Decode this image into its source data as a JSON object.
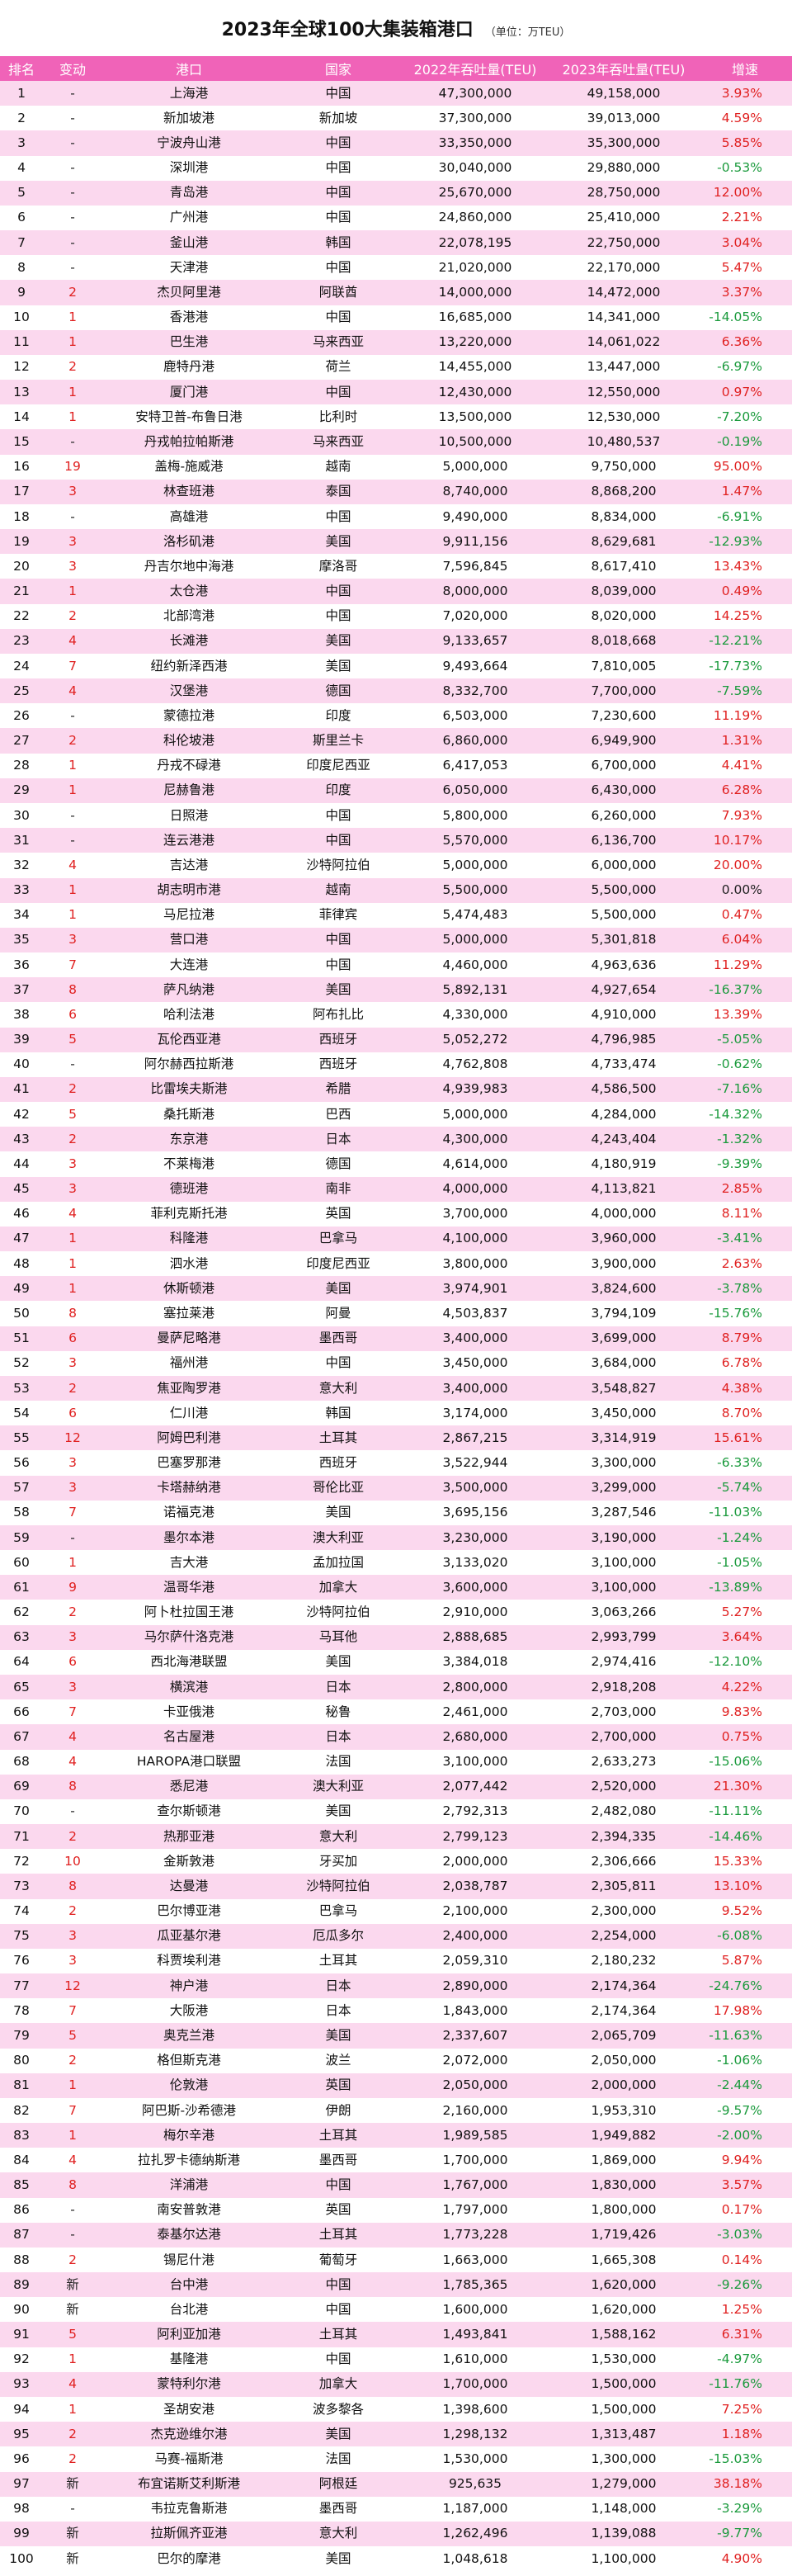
{
  "title": "2023年全球100大集装箱港口",
  "unit": "（单位：万TEU）",
  "colors": {
    "header_bg": "#f063b8",
    "row_stripe": "#fbd8ee",
    "positive": "#e02020",
    "negative": "#1a9a3c"
  },
  "columns": [
    "排名",
    "变动",
    "港口",
    "国家",
    "2022年吞吐量(TEU)",
    "2023年吞吐量(TEU)",
    "增速"
  ],
  "rows": [
    {
      "rank": "1",
      "change": "-",
      "port": "上海港",
      "country": "中国",
      "y2022": "47,300,000",
      "y2023": "49,158,000",
      "growth": "3.93%"
    },
    {
      "rank": "2",
      "change": "-",
      "port": "新加坡港",
      "country": "新加坡",
      "y2022": "37,300,000",
      "y2023": "39,013,000",
      "growth": "4.59%"
    },
    {
      "rank": "3",
      "change": "-",
      "port": "宁波舟山港",
      "country": "中国",
      "y2022": "33,350,000",
      "y2023": "35,300,000",
      "growth": "5.85%"
    },
    {
      "rank": "4",
      "change": "-",
      "port": "深圳港",
      "country": "中国",
      "y2022": "30,040,000",
      "y2023": "29,880,000",
      "growth": "-0.53%"
    },
    {
      "rank": "5",
      "change": "-",
      "port": "青岛港",
      "country": "中国",
      "y2022": "25,670,000",
      "y2023": "28,750,000",
      "growth": "12.00%"
    },
    {
      "rank": "6",
      "change": "-",
      "port": "广州港",
      "country": "中国",
      "y2022": "24,860,000",
      "y2023": "25,410,000",
      "growth": "2.21%"
    },
    {
      "rank": "7",
      "change": "-",
      "port": "釜山港",
      "country": "韩国",
      "y2022": "22,078,195",
      "y2023": "22,750,000",
      "growth": "3.04%"
    },
    {
      "rank": "8",
      "change": "-",
      "port": "天津港",
      "country": "中国",
      "y2022": "21,020,000",
      "y2023": "22,170,000",
      "growth": "5.47%"
    },
    {
      "rank": "9",
      "change": "2",
      "port": "杰贝阿里港",
      "country": "阿联酋",
      "y2022": "14,000,000",
      "y2023": "14,472,000",
      "growth": "3.37%"
    },
    {
      "rank": "10",
      "change": "1",
      "port": "香港港",
      "country": "中国",
      "y2022": "16,685,000",
      "y2023": "14,341,000",
      "growth": "-14.05%"
    },
    {
      "rank": "11",
      "change": "1",
      "port": "巴生港",
      "country": "马来西亚",
      "y2022": "13,220,000",
      "y2023": "14,061,022",
      "growth": "6.36%"
    },
    {
      "rank": "12",
      "change": "2",
      "port": "鹿特丹港",
      "country": "荷兰",
      "y2022": "14,455,000",
      "y2023": "13,447,000",
      "growth": "-6.97%"
    },
    {
      "rank": "13",
      "change": "1",
      "port": "厦门港",
      "country": "中国",
      "y2022": "12,430,000",
      "y2023": "12,550,000",
      "growth": "0.97%"
    },
    {
      "rank": "14",
      "change": "1",
      "port": "安特卫普-布鲁日港",
      "country": "比利时",
      "y2022": "13,500,000",
      "y2023": "12,530,000",
      "growth": "-7.20%"
    },
    {
      "rank": "15",
      "change": "-",
      "port": "丹戎帕拉帕斯港",
      "country": "马来西亚",
      "y2022": "10,500,000",
      "y2023": "10,480,537",
      "growth": "-0.19%"
    },
    {
      "rank": "16",
      "change": "19",
      "port": "盖梅-施威港",
      "country": "越南",
      "y2022": "5,000,000",
      "y2023": "9,750,000",
      "growth": "95.00%"
    },
    {
      "rank": "17",
      "change": "3",
      "port": "林查班港",
      "country": "泰国",
      "y2022": "8,740,000",
      "y2023": "8,868,200",
      "growth": "1.47%"
    },
    {
      "rank": "18",
      "change": "-",
      "port": "高雄港",
      "country": "中国",
      "y2022": "9,490,000",
      "y2023": "8,834,000",
      "growth": "-6.91%"
    },
    {
      "rank": "19",
      "change": "3",
      "port": "洛杉矶港",
      "country": "美国",
      "y2022": "9,911,156",
      "y2023": "8,629,681",
      "growth": "-12.93%"
    },
    {
      "rank": "20",
      "change": "3",
      "port": "丹吉尔地中海港",
      "country": "摩洛哥",
      "y2022": "7,596,845",
      "y2023": "8,617,410",
      "growth": "13.43%"
    },
    {
      "rank": "21",
      "change": "1",
      "port": "太仓港",
      "country": "中国",
      "y2022": "8,000,000",
      "y2023": "8,039,000",
      "growth": "0.49%"
    },
    {
      "rank": "22",
      "change": "2",
      "port": "北部湾港",
      "country": "中国",
      "y2022": "7,020,000",
      "y2023": "8,020,000",
      "growth": "14.25%"
    },
    {
      "rank": "23",
      "change": "4",
      "port": "长滩港",
      "country": "美国",
      "y2022": "9,133,657",
      "y2023": "8,018,668",
      "growth": "-12.21%"
    },
    {
      "rank": "24",
      "change": "7",
      "port": "纽约新泽西港",
      "country": "美国",
      "y2022": "9,493,664",
      "y2023": "7,810,005",
      "growth": "-17.73%"
    },
    {
      "rank": "25",
      "change": "4",
      "port": "汉堡港",
      "country": "德国",
      "y2022": "8,332,700",
      "y2023": "7,700,000",
      "growth": "-7.59%"
    },
    {
      "rank": "26",
      "change": "-",
      "port": "蒙德拉港",
      "country": "印度",
      "y2022": "6,503,000",
      "y2023": "7,230,600",
      "growth": "11.19%"
    },
    {
      "rank": "27",
      "change": "2",
      "port": "科伦坡港",
      "country": "斯里兰卡",
      "y2022": "6,860,000",
      "y2023": "6,949,900",
      "growth": "1.31%"
    },
    {
      "rank": "28",
      "change": "1",
      "port": "丹戎不碌港",
      "country": "印度尼西亚",
      "y2022": "6,417,053",
      "y2023": "6,700,000",
      "growth": "4.41%"
    },
    {
      "rank": "29",
      "change": "1",
      "port": "尼赫鲁港",
      "country": "印度",
      "y2022": "6,050,000",
      "y2023": "6,430,000",
      "growth": "6.28%"
    },
    {
      "rank": "30",
      "change": "-",
      "port": "日照港",
      "country": "中国",
      "y2022": "5,800,000",
      "y2023": "6,260,000",
      "growth": "7.93%"
    },
    {
      "rank": "31",
      "change": "-",
      "port": "连云港港",
      "country": "中国",
      "y2022": "5,570,000",
      "y2023": "6,136,700",
      "growth": "10.17%"
    },
    {
      "rank": "32",
      "change": "4",
      "port": "吉达港",
      "country": "沙特阿拉伯",
      "y2022": "5,000,000",
      "y2023": "6,000,000",
      "growth": "20.00%"
    },
    {
      "rank": "33",
      "change": "1",
      "port": "胡志明市港",
      "country": "越南",
      "y2022": "5,500,000",
      "y2023": "5,500,000",
      "growth": "0.00%"
    },
    {
      "rank": "34",
      "change": "1",
      "port": "马尼拉港",
      "country": "菲律宾",
      "y2022": "5,474,483",
      "y2023": "5,500,000",
      "growth": "0.47%"
    },
    {
      "rank": "35",
      "change": "3",
      "port": "营口港",
      "country": "中国",
      "y2022": "5,000,000",
      "y2023": "5,301,818",
      "growth": "6.04%"
    },
    {
      "rank": "36",
      "change": "7",
      "port": "大连港",
      "country": "中国",
      "y2022": "4,460,000",
      "y2023": "4,963,636",
      "growth": "11.29%"
    },
    {
      "rank": "37",
      "change": "8",
      "port": "萨凡纳港",
      "country": "美国",
      "y2022": "5,892,131",
      "y2023": "4,927,654",
      "growth": "-16.37%"
    },
    {
      "rank": "38",
      "change": "6",
      "port": "哈利法港",
      "country": "阿布扎比",
      "y2022": "4,330,000",
      "y2023": "4,910,000",
      "growth": "13.39%"
    },
    {
      "rank": "39",
      "change": "5",
      "port": "瓦伦西亚港",
      "country": "西班牙",
      "y2022": "5,052,272",
      "y2023": "4,796,985",
      "growth": "-5.05%"
    },
    {
      "rank": "40",
      "change": "-",
      "port": "阿尔赫西拉斯港",
      "country": "西班牙",
      "y2022": "4,762,808",
      "y2023": "4,733,474",
      "growth": "-0.62%"
    },
    {
      "rank": "41",
      "change": "2",
      "port": "比雷埃夫斯港",
      "country": "希腊",
      "y2022": "4,939,983",
      "y2023": "4,586,500",
      "growth": "-7.16%"
    },
    {
      "rank": "42",
      "change": "5",
      "port": "桑托斯港",
      "country": "巴西",
      "y2022": "5,000,000",
      "y2023": "4,284,000",
      "growth": "-14.32%"
    },
    {
      "rank": "43",
      "change": "2",
      "port": "东京港",
      "country": "日本",
      "y2022": "4,300,000",
      "y2023": "4,243,404",
      "growth": "-1.32%"
    },
    {
      "rank": "44",
      "change": "3",
      "port": "不莱梅港",
      "country": "德国",
      "y2022": "4,614,000",
      "y2023": "4,180,919",
      "growth": "-9.39%"
    },
    {
      "rank": "45",
      "change": "3",
      "port": "德班港",
      "country": "南非",
      "y2022": "4,000,000",
      "y2023": "4,113,821",
      "growth": "2.85%"
    },
    {
      "rank": "46",
      "change": "4",
      "port": "菲利克斯托港",
      "country": "英国",
      "y2022": "3,700,000",
      "y2023": "4,000,000",
      "growth": "8.11%"
    },
    {
      "rank": "47",
      "change": "1",
      "port": "科隆港",
      "country": "巴拿马",
      "y2022": "4,100,000",
      "y2023": "3,960,000",
      "growth": "-3.41%"
    },
    {
      "rank": "48",
      "change": "1",
      "port": "泗水港",
      "country": "印度尼西亚",
      "y2022": "3,800,000",
      "y2023": "3,900,000",
      "growth": "2.63%"
    },
    {
      "rank": "49",
      "change": "1",
      "port": "休斯顿港",
      "country": "美国",
      "y2022": "3,974,901",
      "y2023": "3,824,600",
      "growth": "-3.78%"
    },
    {
      "rank": "50",
      "change": "8",
      "port": "塞拉莱港",
      "country": "阿曼",
      "y2022": "4,503,837",
      "y2023": "3,794,109",
      "growth": "-15.76%"
    },
    {
      "rank": "51",
      "change": "6",
      "port": "曼萨尼略港",
      "country": "墨西哥",
      "y2022": "3,400,000",
      "y2023": "3,699,000",
      "growth": "8.79%"
    },
    {
      "rank": "52",
      "change": "3",
      "port": "福州港",
      "country": "中国",
      "y2022": "3,450,000",
      "y2023": "3,684,000",
      "growth": "6.78%"
    },
    {
      "rank": "53",
      "change": "2",
      "port": "焦亚陶罗港",
      "country": "意大利",
      "y2022": "3,400,000",
      "y2023": "3,548,827",
      "growth": "4.38%"
    },
    {
      "rank": "54",
      "change": "6",
      "port": "仁川港",
      "country": "韩国",
      "y2022": "3,174,000",
      "y2023": "3,450,000",
      "growth": "8.70%"
    },
    {
      "rank": "55",
      "change": "12",
      "port": "阿姆巴利港",
      "country": "土耳其",
      "y2022": "2,867,215",
      "y2023": "3,314,919",
      "growth": "15.61%"
    },
    {
      "rank": "56",
      "change": "3",
      "port": "巴塞罗那港",
      "country": "西班牙",
      "y2022": "3,522,944",
      "y2023": "3,300,000",
      "growth": "-6.33%"
    },
    {
      "rank": "57",
      "change": "3",
      "port": "卡塔赫纳港",
      "country": "哥伦比亚",
      "y2022": "3,500,000",
      "y2023": "3,299,000",
      "growth": "-5.74%"
    },
    {
      "rank": "58",
      "change": "7",
      "port": "诺福克港",
      "country": "美国",
      "y2022": "3,695,156",
      "y2023": "3,287,546",
      "growth": "-11.03%"
    },
    {
      "rank": "59",
      "change": "-",
      "port": "墨尔本港",
      "country": "澳大利亚",
      "y2022": "3,230,000",
      "y2023": "3,190,000",
      "growth": "-1.24%"
    },
    {
      "rank": "60",
      "change": "1",
      "port": "吉大港",
      "country": "孟加拉国",
      "y2022": "3,133,020",
      "y2023": "3,100,000",
      "growth": "-1.05%"
    },
    {
      "rank": "61",
      "change": "9",
      "port": "温哥华港",
      "country": "加拿大",
      "y2022": "3,600,000",
      "y2023": "3,100,000",
      "growth": "-13.89%"
    },
    {
      "rank": "62",
      "change": "2",
      "port": "阿卜杜拉国王港",
      "country": "沙特阿拉伯",
      "y2022": "2,910,000",
      "y2023": "3,063,266",
      "growth": "5.27%"
    },
    {
      "rank": "63",
      "change": "3",
      "port": "马尔萨什洛克港",
      "country": "马耳他",
      "y2022": "2,888,685",
      "y2023": "2,993,799",
      "growth": "3.64%"
    },
    {
      "rank": "64",
      "change": "6",
      "port": "西北海港联盟",
      "country": "美国",
      "y2022": "3,384,018",
      "y2023": "2,974,416",
      "growth": "-12.10%"
    },
    {
      "rank": "65",
      "change": "3",
      "port": "横滨港",
      "country": "日本",
      "y2022": "2,800,000",
      "y2023": "2,918,208",
      "growth": "4.22%"
    },
    {
      "rank": "66",
      "change": "7",
      "port": "卡亚俄港",
      "country": "秘鲁",
      "y2022": "2,461,000",
      "y2023": "2,703,000",
      "growth": "9.83%"
    },
    {
      "rank": "67",
      "change": "4",
      "port": "名古屋港",
      "country": "日本",
      "y2022": "2,680,000",
      "y2023": "2,700,000",
      "growth": "0.75%"
    },
    {
      "rank": "68",
      "change": "4",
      "port": "HAROPA港口联盟",
      "country": "法国",
      "y2022": "3,100,000",
      "y2023": "2,633,273",
      "growth": "-15.06%"
    },
    {
      "rank": "69",
      "change": "8",
      "port": "悉尼港",
      "country": "澳大利亚",
      "y2022": "2,077,442",
      "y2023": "2,520,000",
      "growth": "21.30%"
    },
    {
      "rank": "70",
      "change": "-",
      "port": "查尔斯顿港",
      "country": "美国",
      "y2022": "2,792,313",
      "y2023": "2,482,080",
      "growth": "-11.11%"
    },
    {
      "rank": "71",
      "change": "2",
      "port": "热那亚港",
      "country": "意大利",
      "y2022": "2,799,123",
      "y2023": "2,394,335",
      "growth": "-14.46%"
    },
    {
      "rank": "72",
      "change": "10",
      "port": "金斯敦港",
      "country": "牙买加",
      "y2022": "2,000,000",
      "y2023": "2,306,666",
      "growth": "15.33%"
    },
    {
      "rank": "73",
      "change": "8",
      "port": "达曼港",
      "country": "沙特阿拉伯",
      "y2022": "2,038,787",
      "y2023": "2,305,811",
      "growth": "13.10%"
    },
    {
      "rank": "74",
      "change": "2",
      "port": "巴尔博亚港",
      "country": "巴拿马",
      "y2022": "2,100,000",
      "y2023": "2,300,000",
      "growth": "9.52%"
    },
    {
      "rank": "75",
      "change": "3",
      "port": "瓜亚基尔港",
      "country": "厄瓜多尔",
      "y2022": "2,400,000",
      "y2023": "2,254,000",
      "growth": "-6.08%"
    },
    {
      "rank": "76",
      "change": "3",
      "port": "科贾埃利港",
      "country": "土耳其",
      "y2022": "2,059,310",
      "y2023": "2,180,232",
      "growth": "5.87%"
    },
    {
      "rank": "77",
      "change": "12",
      "port": "神户港",
      "country": "日本",
      "y2022": "2,890,000",
      "y2023": "2,174,364",
      "growth": "-24.76%"
    },
    {
      "rank": "78",
      "change": "7",
      "port": "大阪港",
      "country": "日本",
      "y2022": "1,843,000",
      "y2023": "2,174,364",
      "growth": "17.98%"
    },
    {
      "rank": "79",
      "change": "5",
      "port": "奥克兰港",
      "country": "美国",
      "y2022": "2,337,607",
      "y2023": "2,065,709",
      "growth": "-11.63%"
    },
    {
      "rank": "80",
      "change": "2",
      "port": "格但斯克港",
      "country": "波兰",
      "y2022": "2,072,000",
      "y2023": "2,050,000",
      "growth": "-1.06%"
    },
    {
      "rank": "81",
      "change": "1",
      "port": "伦敦港",
      "country": "英国",
      "y2022": "2,050,000",
      "y2023": "2,000,000",
      "growth": "-2.44%"
    },
    {
      "rank": "82",
      "change": "7",
      "port": "阿巴斯-沙希德港",
      "country": "伊朗",
      "y2022": "2,160,000",
      "y2023": "1,953,310",
      "growth": "-9.57%"
    },
    {
      "rank": "83",
      "change": "1",
      "port": "梅尔辛港",
      "country": "土耳其",
      "y2022": "1,989,585",
      "y2023": "1,949,882",
      "growth": "-2.00%"
    },
    {
      "rank": "84",
      "change": "4",
      "port": "拉扎罗卡德纳斯港",
      "country": "墨西哥",
      "y2022": "1,700,000",
      "y2023": "1,869,000",
      "growth": "9.94%"
    },
    {
      "rank": "85",
      "change": "8",
      "port": "洋浦港",
      "country": "中国",
      "y2022": "1,767,000",
      "y2023": "1,830,000",
      "growth": "3.57%"
    },
    {
      "rank": "86",
      "change": "-",
      "port": "南安普敦港",
      "country": "英国",
      "y2022": "1,797,000",
      "y2023": "1,800,000",
      "growth": "0.17%"
    },
    {
      "rank": "87",
      "change": "-",
      "port": "泰基尔达港",
      "country": "土耳其",
      "y2022": "1,773,228",
      "y2023": "1,719,426",
      "growth": "-3.03%"
    },
    {
      "rank": "88",
      "change": "2",
      "port": "锡尼什港",
      "country": "葡萄牙",
      "y2022": "1,663,000",
      "y2023": "1,665,308",
      "growth": "0.14%"
    },
    {
      "rank": "89",
      "change": "新",
      "port": "台中港",
      "country": "中国",
      "y2022": "1,785,365",
      "y2023": "1,620,000",
      "growth": "-9.26%"
    },
    {
      "rank": "90",
      "change": "新",
      "port": "台北港",
      "country": "中国",
      "y2022": "1,600,000",
      "y2023": "1,620,000",
      "growth": "1.25%"
    },
    {
      "rank": "91",
      "change": "5",
      "port": "阿利亚加港",
      "country": "土耳其",
      "y2022": "1,493,841",
      "y2023": "1,588,162",
      "growth": "6.31%"
    },
    {
      "rank": "92",
      "change": "1",
      "port": "基隆港",
      "country": "中国",
      "y2022": "1,610,000",
      "y2023": "1,530,000",
      "growth": "-4.97%"
    },
    {
      "rank": "93",
      "change": "4",
      "port": "蒙特利尔港",
      "country": "加拿大",
      "y2022": "1,700,000",
      "y2023": "1,500,000",
      "growth": "-11.76%"
    },
    {
      "rank": "94",
      "change": "1",
      "port": "圣胡安港",
      "country": "波多黎各",
      "y2022": "1,398,600",
      "y2023": "1,500,000",
      "growth": "7.25%"
    },
    {
      "rank": "95",
      "change": "2",
      "port": "杰克逊维尔港",
      "country": "美国",
      "y2022": "1,298,132",
      "y2023": "1,313,487",
      "growth": "1.18%"
    },
    {
      "rank": "96",
      "change": "2",
      "port": "马赛-福斯港",
      "country": "法国",
      "y2022": "1,530,000",
      "y2023": "1,300,000",
      "growth": "-15.03%"
    },
    {
      "rank": "97",
      "change": "新",
      "port": "布宜诺斯艾利斯港",
      "country": "阿根廷",
      "y2022": "925,635",
      "y2023": "1,279,000",
      "growth": "38.18%"
    },
    {
      "rank": "98",
      "change": "-",
      "port": "韦拉克鲁斯港",
      "country": "墨西哥",
      "y2022": "1,187,000",
      "y2023": "1,148,000",
      "growth": "-3.29%"
    },
    {
      "rank": "99",
      "change": "新",
      "port": "拉斯佩齐亚港",
      "country": "意大利",
      "y2022": "1,262,496",
      "y2023": "1,139,088",
      "growth": "-9.77%"
    },
    {
      "rank": "100",
      "change": "新",
      "port": "巴尔的摩港",
      "country": "美国",
      "y2022": "1,048,618",
      "y2023": "1,100,000",
      "growth": "4.90%"
    }
  ]
}
